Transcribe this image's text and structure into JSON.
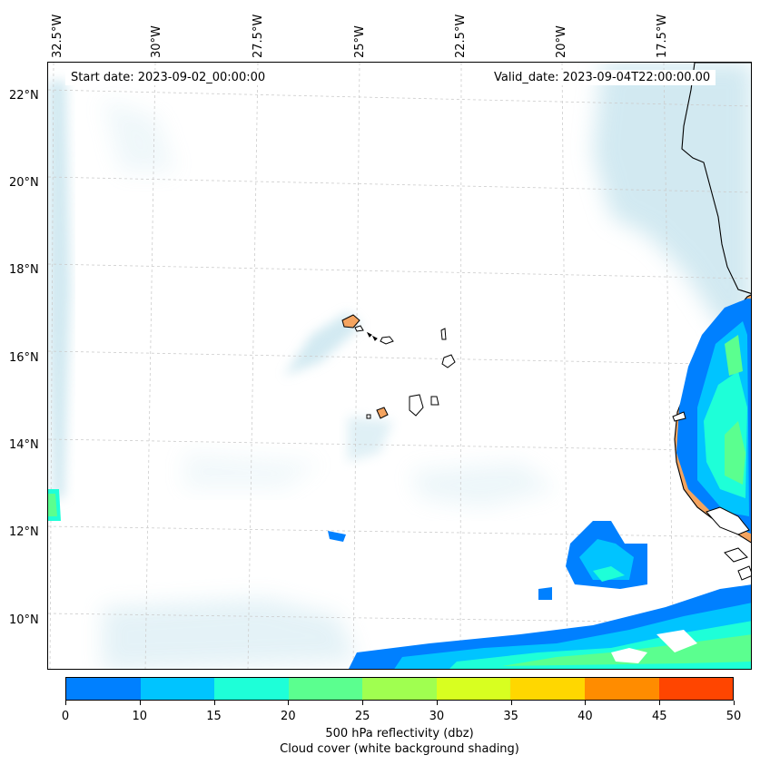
{
  "header": {
    "start_date": "Start date: 2023-09-02_00:00:00",
    "valid_date": "Valid_date: 2023-09-04T22:00:00.00"
  },
  "longitude_labels": [
    "32.5°W",
    "30°W",
    "27.5°W",
    "25°W",
    "22.5°W",
    "20°W",
    "17.5°W"
  ],
  "latitude_labels": [
    "22°N",
    "20°N",
    "18°N",
    "16°N",
    "14°N",
    "12°N",
    "10°N"
  ],
  "colorbar": {
    "ticks": [
      "0",
      "10",
      "15",
      "20",
      "25",
      "30",
      "35",
      "40",
      "45",
      "50"
    ],
    "colors": [
      "#0080ff",
      "#00c4ff",
      "#1effd8",
      "#5bff8f",
      "#a0ff50",
      "#d8ff20",
      "#ffd700",
      "#ff8c00",
      "#ff4500"
    ],
    "label_line1": "500 hPa reflectivity (dbz)",
    "label_line2": "Cloud cover (white background shading)"
  },
  "land_color": "#f4a460",
  "cloud_color": "#add8e6"
}
